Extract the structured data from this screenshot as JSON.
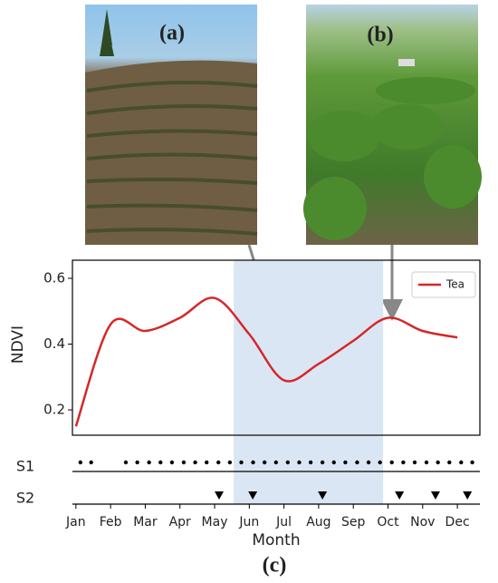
{
  "chart_data": {
    "type": "line",
    "x_label": "Month",
    "y_label": "NDVI",
    "panel_labels": [
      "(a)",
      "(b)",
      "(c)"
    ],
    "categories": [
      "Jan",
      "Feb",
      "Mar",
      "Apr",
      "May",
      "Jun",
      "Jul",
      "Aug",
      "Sep",
      "Oct",
      "Nov",
      "Dec"
    ],
    "series": [
      {
        "name": "Tea",
        "color": "#d62728",
        "values": [
          0.15,
          0.46,
          0.44,
          0.48,
          0.54,
          0.43,
          0.29,
          0.34,
          0.41,
          0.48,
          0.44,
          0.42
        ]
      }
    ],
    "xlim": [
      -0.1,
      11.65
    ],
    "ylim": [
      0.123,
      0.655
    ],
    "yticks": [
      0.2,
      0.4,
      0.6
    ],
    "shaded_range": [
      4.55,
      8.86
    ],
    "legend": "upper right",
    "sensors": [
      {
        "name": "S1",
        "marker": "dot",
        "positions": [
          0.13,
          0.44,
          1.44,
          1.77,
          2.11,
          2.44,
          2.77,
          3.11,
          3.44,
          3.77,
          4.11,
          4.44,
          4.77,
          5.11,
          5.44,
          5.77,
          6.11,
          6.44,
          6.77,
          7.11,
          7.44,
          7.77,
          8.11,
          8.44,
          8.77,
          9.11,
          9.44,
          9.77,
          10.11,
          10.44,
          10.77,
          11.11,
          11.43
        ]
      },
      {
        "name": "S2",
        "marker": "triangle",
        "positions": [
          4.13,
          5.1,
          7.11,
          9.33,
          10.37,
          11.29
        ]
      }
    ]
  }
}
